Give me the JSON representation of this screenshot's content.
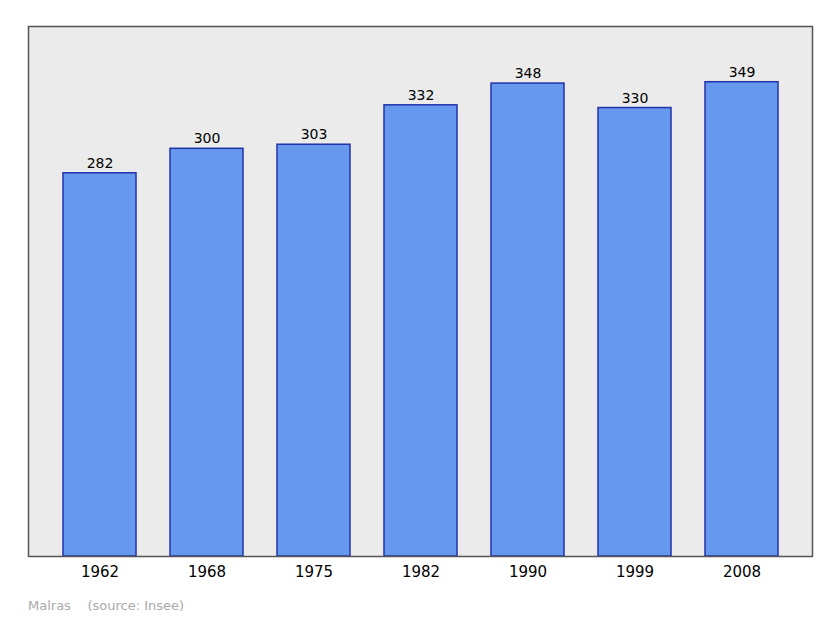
{
  "chart_data": {
    "type": "bar",
    "categories": [
      "1962",
      "1968",
      "1975",
      "1982",
      "1990",
      "1999",
      "2008"
    ],
    "values": [
      282,
      300,
      303,
      332,
      348,
      330,
      349
    ],
    "color": "#6699EE",
    "ylim": [
      0,
      390
    ],
    "grid": false,
    "data_labels": true,
    "tick_labels": "x",
    "annotations": [
      "Malras    (source: Insee)"
    ]
  }
}
